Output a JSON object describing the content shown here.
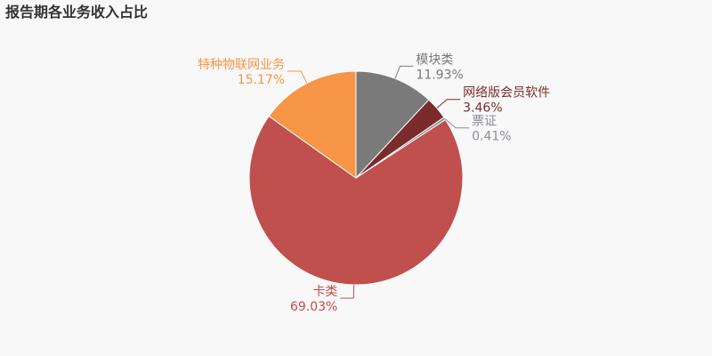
{
  "chart_data": {
    "type": "pie",
    "title": "报告期各业务收入占比",
    "categories": [
      "模块类",
      "网络版会员软件",
      "票证",
      "卡类",
      "特种物联网业务"
    ],
    "values": [
      11.93,
      3.46,
      0.41,
      69.03,
      15.17
    ],
    "value_labels": [
      "11.93%",
      "3.46%",
      "0.41%",
      "69.03%",
      "15.17%"
    ],
    "colors": [
      "#7a7a7a",
      "#7b2b2b",
      "#8c8c9a",
      "#c0504d",
      "#f79646"
    ]
  }
}
